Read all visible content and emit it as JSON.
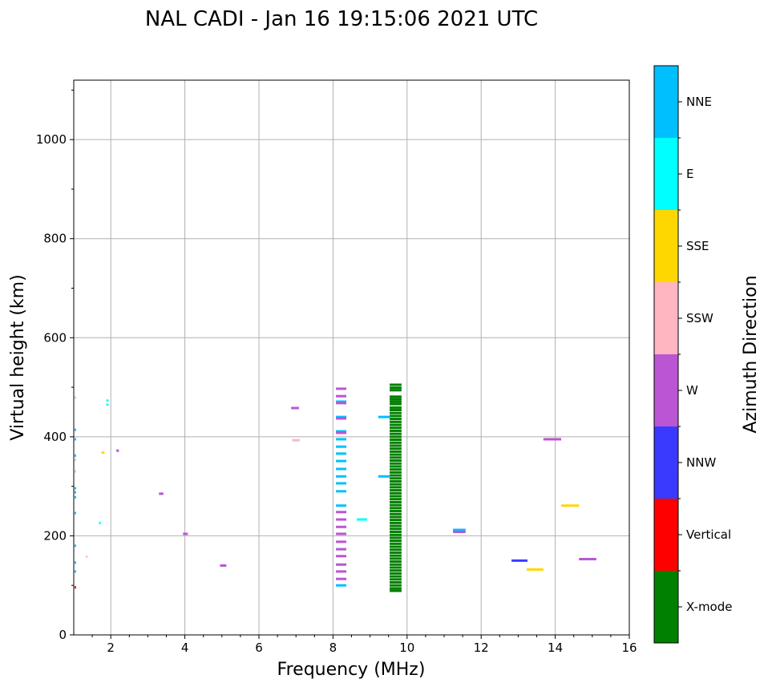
{
  "chart_data": {
    "type": "scatter",
    "title": "NAL CADI - Jan 16 19:15:06 2021 UTC",
    "xlabel": "Frequency (MHz)",
    "ylabel": "Virtual height (km)",
    "xlim": [
      1,
      16
    ],
    "ylim": [
      0,
      1120
    ],
    "xticks": [
      2,
      4,
      6,
      8,
      10,
      12,
      14,
      16
    ],
    "yticks": [
      0,
      200,
      400,
      600,
      800,
      1000
    ],
    "grid": true,
    "colorbar": {
      "label": "Azimuth Direction",
      "categories": [
        "X-mode",
        "Vertical",
        "NNW",
        "W",
        "SSW",
        "SSE",
        "E",
        "NNE"
      ],
      "colors": [
        "#008000",
        "#ff0000",
        "#3a3aff",
        "#ba55d3",
        "#ffb6c1",
        "#ffd700",
        "#00ffff",
        "#00bfff"
      ]
    },
    "echo_fields": [
      "freq_start_mhz",
      "freq_end_mhz",
      "height_km",
      "direction_index"
    ],
    "echoes": [
      [
        8.08,
        8.36,
        497,
        3
      ],
      [
        8.08,
        8.36,
        482,
        3
      ],
      [
        8.08,
        8.36,
        471,
        7
      ],
      [
        8.08,
        8.36,
        468,
        3
      ],
      [
        8.08,
        8.36,
        440,
        7
      ],
      [
        8.08,
        8.36,
        437,
        3
      ],
      [
        8.08,
        8.36,
        411,
        7
      ],
      [
        8.08,
        8.36,
        408,
        3
      ],
      [
        8.08,
        8.36,
        395,
        7
      ],
      [
        8.08,
        8.36,
        380,
        7
      ],
      [
        8.08,
        8.36,
        366,
        7
      ],
      [
        8.08,
        8.36,
        351,
        7
      ],
      [
        8.08,
        8.36,
        335,
        7
      ],
      [
        8.08,
        8.36,
        320,
        7
      ],
      [
        8.08,
        8.36,
        306,
        7
      ],
      [
        8.08,
        8.36,
        290,
        7
      ],
      [
        8.08,
        8.36,
        261,
        7
      ],
      [
        8.08,
        8.36,
        248,
        3
      ],
      [
        8.08,
        8.36,
        233,
        3
      ],
      [
        8.08,
        8.36,
        218,
        3
      ],
      [
        8.08,
        8.36,
        204,
        3
      ],
      [
        8.08,
        8.36,
        188,
        3
      ],
      [
        8.08,
        8.36,
        173,
        3
      ],
      [
        8.08,
        8.36,
        159,
        3
      ],
      [
        8.08,
        8.36,
        142,
        3
      ],
      [
        8.08,
        8.36,
        128,
        3
      ],
      [
        8.08,
        8.36,
        113,
        3
      ],
      [
        8.08,
        8.36,
        100,
        7
      ],
      [
        9.22,
        9.53,
        440,
        7
      ],
      [
        9.22,
        9.53,
        320,
        7
      ],
      [
        8.64,
        8.92,
        233,
        6
      ],
      [
        6.87,
        7.08,
        458,
        3
      ],
      [
        6.9,
        7.1,
        393,
        4
      ],
      [
        3.3,
        3.42,
        285,
        3
      ],
      [
        3.95,
        4.08,
        204,
        3
      ],
      [
        4.95,
        5.12,
        140,
        3
      ],
      [
        1.75,
        1.83,
        368,
        5
      ],
      [
        2.15,
        2.22,
        372,
        3
      ],
      [
        1.88,
        1.94,
        465,
        6
      ],
      [
        1.88,
        1.94,
        473,
        6
      ],
      [
        1.68,
        1.73,
        226,
        6
      ],
      [
        1.33,
        1.37,
        158,
        4
      ],
      [
        1.02,
        1.06,
        479,
        4
      ],
      [
        1.02,
        1.06,
        414,
        7
      ],
      [
        1.02,
        1.06,
        395,
        7
      ],
      [
        1.02,
        1.06,
        362,
        7
      ],
      [
        1.02,
        1.06,
        353,
        4
      ],
      [
        1.02,
        1.06,
        330,
        4
      ],
      [
        1.02,
        1.06,
        296,
        7
      ],
      [
        1.02,
        1.06,
        288,
        7
      ],
      [
        1.02,
        1.06,
        278,
        7
      ],
      [
        1.02,
        1.06,
        246,
        7
      ],
      [
        1.02,
        1.06,
        180,
        7
      ],
      [
        1.02,
        1.06,
        146,
        7
      ],
      [
        1.02,
        1.06,
        128,
        7
      ],
      [
        1.02,
        1.06,
        96,
        1
      ],
      [
        11.24,
        11.58,
        212,
        7
      ],
      [
        11.24,
        11.58,
        208,
        3
      ],
      [
        12.82,
        13.25,
        150,
        2
      ],
      [
        13.23,
        13.68,
        132,
        5
      ],
      [
        13.68,
        14.16,
        395,
        3
      ],
      [
        14.16,
        14.64,
        261,
        5
      ],
      [
        14.64,
        15.11,
        153,
        3
      ]
    ],
    "xmode_trace": {
      "freq_start_mhz": 9.53,
      "freq_end_mhz": 9.85,
      "direction_index": 0,
      "heights_km": [
        505,
        499,
        494,
        481,
        476,
        471,
        466,
        459,
        454,
        448,
        442,
        436,
        430,
        424,
        418,
        412,
        406,
        400,
        394,
        388,
        382,
        376,
        370,
        364,
        358,
        352,
        346,
        340,
        334,
        328,
        322,
        316,
        310,
        304,
        298,
        292,
        286,
        280,
        274,
        268,
        262,
        256,
        250,
        244,
        238,
        232,
        226,
        220,
        214,
        208,
        202,
        196,
        190,
        184,
        178,
        172,
        166,
        160,
        154,
        148,
        142,
        136,
        130,
        124,
        118,
        112,
        106,
        100,
        94,
        89
      ]
    }
  }
}
